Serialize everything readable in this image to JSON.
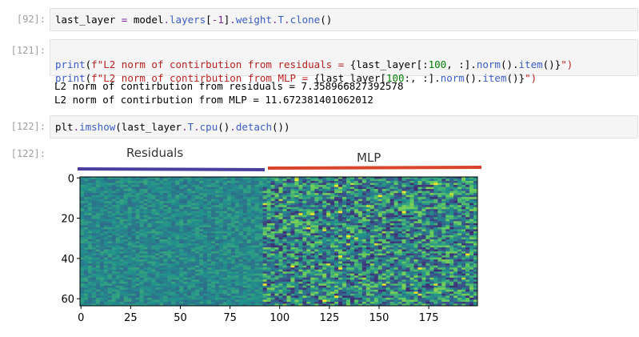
{
  "cells": [
    {
      "prompt": "[92]:",
      "code_parts": [
        {
          "t": "last_layer ",
          "c": "b"
        },
        {
          "t": "=",
          "c": "o"
        },
        {
          "t": " model",
          "c": "b"
        },
        {
          "t": ".",
          "c": "o"
        },
        {
          "t": "layers",
          "c": "f"
        },
        {
          "t": "[",
          "c": "b"
        },
        {
          "t": "-1",
          "c": "o"
        },
        {
          "t": "]",
          "c": "b"
        },
        {
          "t": ".",
          "c": "o"
        },
        {
          "t": "weight",
          "c": "f"
        },
        {
          "t": ".",
          "c": "o"
        },
        {
          "t": "T",
          "c": "f"
        },
        {
          "t": ".",
          "c": "o"
        },
        {
          "t": "clone",
          "c": "f"
        },
        {
          "t": "()",
          "c": "b"
        }
      ]
    },
    {
      "prompt": "[121]:",
      "line1": {
        "print": "print",
        "open": "(",
        "fprefix": "f",
        "str": "\"L2 norm of contirbution from residuals = ",
        "expr_a": "{last_layer[:",
        "num": "100",
        "expr_b": ", :].",
        "norm": "norm",
        "mid": "().",
        "item": "item",
        "expr_c": "()}",
        "close": "\")"
      },
      "line2": {
        "print": "print",
        "open": "(",
        "fprefix": "f",
        "str": "\"L2 norm of contirbution from MLP = ",
        "expr_a": "{last_layer[",
        "num": "100",
        "expr_b": ":, :].",
        "norm": "norm",
        "mid": "().",
        "item": "item",
        "expr_c": "()}",
        "close": "\")"
      },
      "output": [
        "L2 norm of contirbution from residuals = 7.358966827392578",
        "L2 norm of contirbution from MLP = 11.672381401062012"
      ]
    },
    {
      "prompt": "[122]:",
      "code_parts": [
        {
          "t": "plt",
          "c": "b"
        },
        {
          "t": ".",
          "c": "o"
        },
        {
          "t": "imshow",
          "c": "f"
        },
        {
          "t": "(last_layer",
          "c": "b"
        },
        {
          "t": ".",
          "c": "o"
        },
        {
          "t": "T",
          "c": "f"
        },
        {
          "t": ".",
          "c": "o"
        },
        {
          "t": "cpu",
          "c": "f"
        },
        {
          "t": "()",
          "c": "b"
        },
        {
          "t": ".",
          "c": "o"
        },
        {
          "t": "detach",
          "c": "f"
        },
        {
          "t": "())",
          "c": "b"
        }
      ]
    },
    {
      "prompt": "[122]:"
    }
  ],
  "annotations": {
    "residuals_label": "Residuals",
    "mlp_label": "MLP",
    "residuals_color": "#4a3f9e",
    "mlp_color": "#d9452a"
  },
  "chart_data": {
    "type": "heatmap",
    "rows": 64,
    "cols": 200,
    "colormap": "viridis",
    "x_ticks": [
      0,
      25,
      50,
      75,
      100,
      125,
      150,
      175
    ],
    "y_ticks": [
      0,
      20,
      40,
      60
    ],
    "split_col": 100
  }
}
